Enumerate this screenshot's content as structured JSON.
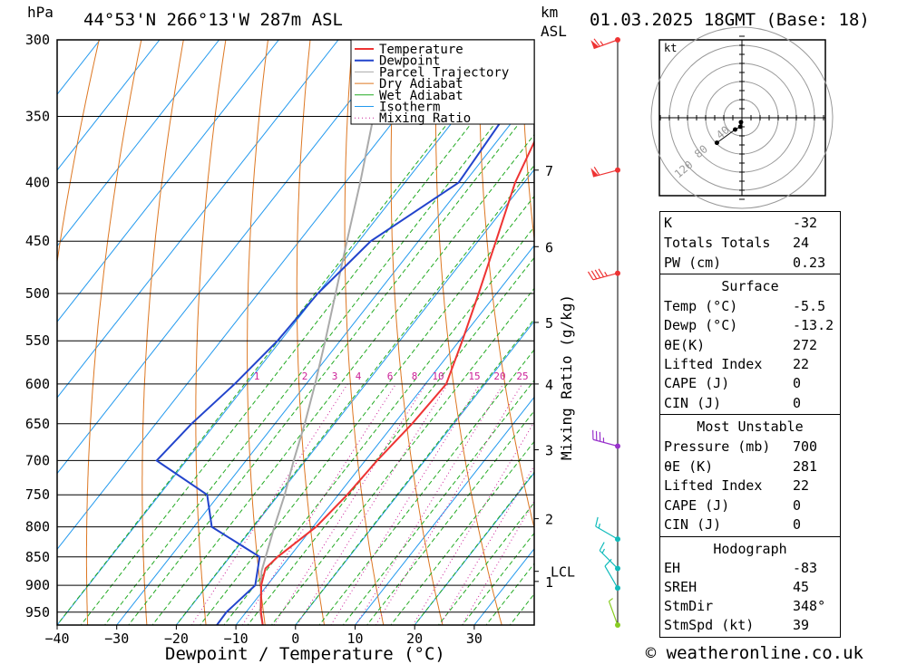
{
  "header": {
    "location": "44°53'N  266°13'W  287m  ASL",
    "datetime": "01.03.2025  18GMT  (Base: 18)",
    "pressure_unit": "hPa",
    "height_unit_km": "km",
    "height_unit_asl": "ASL"
  },
  "chart_data": {
    "type": "line",
    "title": "44°53'N 266°13'W 287m ASL",
    "xlabel": "Dewpoint / Temperature (°C)",
    "ylabel": "hPa",
    "y2label": "Mixing Ratio (g/kg)",
    "xlim": [
      -40,
      40
    ],
    "ylim": [
      975,
      300
    ],
    "x_ticks": [
      -40,
      -30,
      -20,
      -10,
      0,
      10,
      20,
      30
    ],
    "y_ticks": [
      300,
      350,
      400,
      450,
      500,
      550,
      600,
      650,
      700,
      750,
      800,
      850,
      900,
      950
    ],
    "km_ticks": [
      {
        "km": "7",
        "p": 390
      },
      {
        "km": "6",
        "p": 455
      },
      {
        "km": "5",
        "p": 530
      },
      {
        "km": "4",
        "p": 600
      },
      {
        "km": "3",
        "p": 685
      },
      {
        "km": "2",
        "p": 787
      },
      {
        "km": "1",
        "p": 893
      }
    ],
    "lcl": {
      "label": "LCL",
      "p": 875
    },
    "mixing_ratio_labels": [
      "1",
      "2",
      "3",
      "4",
      "6",
      "8",
      "10",
      "15",
      "20",
      "25"
    ],
    "legend": [
      "Temperature",
      "Dewpoint",
      "Parcel Trajectory",
      "Dry Adiabat",
      "Wet Adiabat",
      "Isotherm",
      "Mixing Ratio"
    ],
    "legend_position": "top-right",
    "series": [
      {
        "name": "Temperature",
        "color": "#ee3333",
        "points": [
          [
            975,
            -5.5
          ],
          [
            950,
            -7.5
          ],
          [
            900,
            -11
          ],
          [
            870,
            -12.5
          ],
          [
            850,
            -12
          ],
          [
            800,
            -9.5
          ],
          [
            750,
            -8.5
          ],
          [
            700,
            -8
          ],
          [
            650,
            -7
          ],
          [
            600,
            -6.5
          ],
          [
            550,
            -9.5
          ],
          [
            500,
            -13
          ],
          [
            450,
            -17
          ],
          [
            400,
            -21.5
          ],
          [
            350,
            -25
          ],
          [
            300,
            -24
          ]
        ]
      },
      {
        "name": "Dewpoint",
        "color": "#2244cc",
        "points": [
          [
            975,
            -13.2
          ],
          [
            950,
            -13.3
          ],
          [
            900,
            -12
          ],
          [
            850,
            -15
          ],
          [
            800,
            -27
          ],
          [
            750,
            -32
          ],
          [
            700,
            -45
          ],
          [
            650,
            -44
          ],
          [
            600,
            -42
          ],
          [
            550,
            -40.5
          ],
          [
            500,
            -40
          ],
          [
            450,
            -38
          ],
          [
            400,
            -31
          ],
          [
            350,
            -32
          ],
          [
            300,
            -34
          ]
        ]
      },
      {
        "name": "Parcel Trajectory",
        "color": "#aaaaaa",
        "points": [
          [
            975,
            -5.5
          ],
          [
            950,
            -7.6
          ],
          [
            900,
            -11
          ],
          [
            875,
            -12.8
          ],
          [
            850,
            -14
          ],
          [
            800,
            -16.5
          ],
          [
            750,
            -19
          ],
          [
            700,
            -22
          ],
          [
            650,
            -25
          ],
          [
            600,
            -28.5
          ],
          [
            550,
            -32.5
          ],
          [
            500,
            -37
          ],
          [
            450,
            -42
          ],
          [
            400,
            -47.5
          ],
          [
            350,
            -54
          ],
          [
            300,
            -61
          ]
        ]
      }
    ],
    "wind_barbs": [
      {
        "p": 300,
        "dir_deg": 250,
        "speed_kt": 65,
        "color": "#ee3333"
      },
      {
        "p": 390,
        "dir_deg": 255,
        "speed_kt": 60,
        "color": "#ee3333"
      },
      {
        "p": 480,
        "dir_deg": 255,
        "speed_kt": 45,
        "color": "#ee3333"
      },
      {
        "p": 680,
        "dir_deg": 285,
        "speed_kt": 35,
        "color": "#9933cc"
      },
      {
        "p": 820,
        "dir_deg": 300,
        "speed_kt": 15,
        "color": "#11bbbb"
      },
      {
        "p": 870,
        "dir_deg": 315,
        "speed_kt": 15,
        "color": "#11bbbb"
      },
      {
        "p": 905,
        "dir_deg": 330,
        "speed_kt": 10,
        "color": "#11bbbb"
      },
      {
        "p": 975,
        "dir_deg": 340,
        "speed_kt": 5,
        "color": "#88cc22"
      }
    ]
  },
  "hodograph": {
    "unit": "kt",
    "ring_labels": [
      "40",
      "80",
      "120"
    ],
    "points": [
      [
        348,
        5
      ],
      [
        350,
        10
      ],
      [
        330,
        15
      ],
      [
        315,
        39
      ]
    ]
  },
  "indices": {
    "rows": [
      {
        "k": "K",
        "v": "-32"
      },
      {
        "k": "Totals Totals",
        "v": "24"
      },
      {
        "k": "PW (cm)",
        "v": "0.23"
      }
    ]
  },
  "surface": {
    "title": "Surface",
    "rows": [
      {
        "k": "Temp (°C)",
        "v": "-5.5"
      },
      {
        "k": "Dewp (°C)",
        "v": "-13.2"
      },
      {
        "k": "θE(K)",
        "v": "272"
      },
      {
        "k": "Lifted Index",
        "v": "22"
      },
      {
        "k": "CAPE (J)",
        "v": "0"
      },
      {
        "k": "CIN (J)",
        "v": "0"
      }
    ]
  },
  "most_unstable": {
    "title": "Most Unstable",
    "rows": [
      {
        "k": "Pressure (mb)",
        "v": "700"
      },
      {
        "k": "θE (K)",
        "v": "281"
      },
      {
        "k": "Lifted Index",
        "v": "22"
      },
      {
        "k": "CAPE (J)",
        "v": "0"
      },
      {
        "k": "CIN (J)",
        "v": "0"
      }
    ]
  },
  "hodograph_table": {
    "title": "Hodograph",
    "rows": [
      {
        "k": "EH",
        "v": "-83"
      },
      {
        "k": "SREH",
        "v": "45"
      },
      {
        "k": "StmDir",
        "v": "348°"
      },
      {
        "k": "StmSpd (kt)",
        "v": "39"
      }
    ]
  },
  "footer": {
    "copyright": "© weatheronline.co.uk"
  },
  "colors": {
    "temperature": "#ee3333",
    "dewpoint": "#2244cc",
    "parcel": "#aaaaaa",
    "dry_adiabat": "#dd7722",
    "wet_adiabat": "#22aa22",
    "isotherm": "#2299ee",
    "mixing_ratio": "#cc2299"
  }
}
